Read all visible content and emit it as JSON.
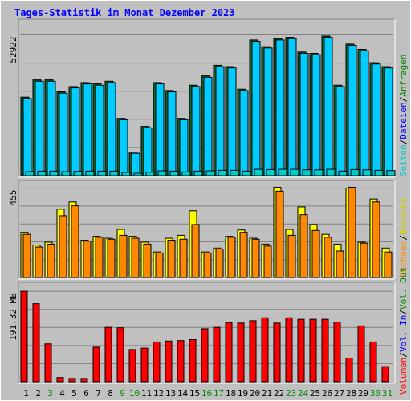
{
  "title": "Tages-Statistik im Monat Dezember 2023",
  "colors": {
    "background": "#c0c0c0",
    "title": "#0000ff",
    "requests": "#006633",
    "files": "#00ccff",
    "pages": "#00cccc",
    "visits": "#ffff00",
    "hosts": "#ff8800",
    "volume": "#ff0000",
    "vol_in": "#0000ff",
    "vol_out": "#008800",
    "sunday_label": "#008800",
    "weekday_label": "#000000"
  },
  "right_legend": {
    "top": [
      {
        "text": "Anfragen",
        "color": "#008800"
      },
      {
        "text": "/",
        "color": "#000000"
      },
      {
        "text": "Dateien",
        "color": "#0000ff"
      },
      {
        "text": "/",
        "color": "#000000"
      },
      {
        "text": "Seiten",
        "color": "#00cccc"
      }
    ],
    "middle": [
      {
        "text": "Besuche",
        "color": "#cccc00"
      },
      {
        "text": "/",
        "color": "#000000"
      },
      {
        "text": "Rechner",
        "color": "#ff8800"
      }
    ],
    "bottom": [
      {
        "text": "Vol. Out",
        "color": "#008800"
      },
      {
        "text": "/",
        "color": "#000000"
      },
      {
        "text": "Vol. In",
        "color": "#0000ff"
      },
      {
        "text": "/",
        "color": "#000000"
      },
      {
        "text": "Volumen",
        "color": "#ff0000"
      }
    ]
  },
  "chart_data": [
    {
      "type": "bar",
      "panel": "requests",
      "ytick_label": "52922",
      "ymax": 52922,
      "ylim": [
        0,
        57000
      ],
      "categories": [
        "1",
        "2",
        "3",
        "4",
        "5",
        "6",
        "7",
        "8",
        "9",
        "10",
        "11",
        "12",
        "13",
        "14",
        "15",
        "16",
        "17",
        "18",
        "19",
        "20",
        "21",
        "22",
        "23",
        "24",
        "25",
        "26",
        "27",
        "28",
        "29",
        "30",
        "31"
      ],
      "series": [
        {
          "name": "Anfragen",
          "values": [
            29500,
            36000,
            36000,
            31500,
            33500,
            35000,
            34500,
            35500,
            21500,
            8500,
            18500,
            35000,
            32000,
            21500,
            34000,
            37500,
            41500,
            41000,
            32500,
            51000,
            48500,
            51500,
            52000,
            46500,
            46000,
            52500,
            34000,
            49500,
            47500,
            42500,
            41000
          ]
        },
        {
          "name": "Dateien",
          "values": [
            29000,
            35500,
            35500,
            31000,
            33000,
            34500,
            34000,
            35000,
            21000,
            8400,
            18000,
            34500,
            31500,
            21000,
            33500,
            37000,
            41000,
            40500,
            32000,
            50500,
            48000,
            51000,
            51500,
            46000,
            45500,
            52000,
            33500,
            49000,
            47000,
            42000,
            40500
          ]
        },
        {
          "name": "Seiten",
          "values": [
            1500,
            1700,
            1700,
            1500,
            1600,
            1700,
            1700,
            1700,
            1200,
            900,
            1300,
            1800,
            1700,
            1400,
            1700,
            1800,
            2000,
            2000,
            1700,
            2400,
            2300,
            2400,
            2400,
            2200,
            2200,
            2400,
            1700,
            2300,
            2200,
            2000,
            1900
          ]
        }
      ]
    },
    {
      "type": "bar",
      "panel": "visits",
      "ytick_label": "455",
      "ymax": 455,
      "ylim": [
        0,
        470
      ],
      "categories": [
        "1",
        "2",
        "3",
        "4",
        "5",
        "6",
        "7",
        "8",
        "9",
        "10",
        "11",
        "12",
        "13",
        "14",
        "15",
        "16",
        "17",
        "18",
        "19",
        "20",
        "21",
        "22",
        "23",
        "24",
        "25",
        "26",
        "27",
        "28",
        "29",
        "30",
        "31"
      ],
      "series": [
        {
          "name": "Besuche",
          "values": [
            230,
            165,
            180,
            348,
            385,
            190,
            210,
            200,
            245,
            210,
            180,
            130,
            200,
            215,
            340,
            130,
            150,
            210,
            242,
            200,
            170,
            460,
            245,
            360,
            270,
            220,
            170,
            455,
            180,
            400,
            150
          ]
        },
        {
          "name": "Rechner",
          "values": [
            220,
            155,
            170,
            315,
            365,
            185,
            205,
            195,
            215,
            200,
            170,
            125,
            190,
            195,
            270,
            125,
            145,
            205,
            230,
            195,
            160,
            440,
            215,
            320,
            240,
            205,
            135,
            460,
            175,
            385,
            130
          ]
        }
      ]
    },
    {
      "type": "bar",
      "panel": "volume",
      "ytick_label": "191.32 MB",
      "unit": "MB",
      "ymax": 191.32,
      "ylim": [
        0,
        200
      ],
      "categories": [
        "1",
        "2",
        "3",
        "4",
        "5",
        "6",
        "7",
        "8",
        "9",
        "10",
        "11",
        "12",
        "13",
        "14",
        "15",
        "16",
        "17",
        "18",
        "19",
        "20",
        "21",
        "22",
        "23",
        "24",
        "25",
        "26",
        "27",
        "28",
        "29",
        "30",
        "31"
      ],
      "series": [
        {
          "name": "Volumen",
          "values": [
            191.32,
            165,
            80,
            9,
            7,
            7,
            73,
            115,
            114,
            68,
            71,
            84,
            86,
            87,
            89,
            112,
            115,
            125,
            124,
            129,
            135,
            124,
            135,
            132,
            132,
            132,
            126,
            50,
            118,
            84,
            32
          ]
        }
      ]
    }
  ],
  "x_labels": [
    {
      "text": "1",
      "sunday": false
    },
    {
      "text": "2",
      "sunday": false
    },
    {
      "text": "3",
      "sunday": true
    },
    {
      "text": "4",
      "sunday": false
    },
    {
      "text": "5",
      "sunday": false
    },
    {
      "text": "6",
      "sunday": false
    },
    {
      "text": "7",
      "sunday": false
    },
    {
      "text": "8",
      "sunday": false
    },
    {
      "text": "9",
      "sunday": true
    },
    {
      "text": "10",
      "sunday": true
    },
    {
      "text": "11",
      "sunday": false
    },
    {
      "text": "12",
      "sunday": false
    },
    {
      "text": "13",
      "sunday": false
    },
    {
      "text": "14",
      "sunday": false
    },
    {
      "text": "15",
      "sunday": false
    },
    {
      "text": "16",
      "sunday": true
    },
    {
      "text": "17",
      "sunday": true
    },
    {
      "text": "18",
      "sunday": false
    },
    {
      "text": "19",
      "sunday": false
    },
    {
      "text": "20",
      "sunday": false
    },
    {
      "text": "21",
      "sunday": false
    },
    {
      "text": "22",
      "sunday": false
    },
    {
      "text": "23",
      "sunday": true
    },
    {
      "text": "24",
      "sunday": true
    },
    {
      "text": "25",
      "sunday": false
    },
    {
      "text": "26",
      "sunday": false
    },
    {
      "text": "27",
      "sunday": false
    },
    {
      "text": "28",
      "sunday": false
    },
    {
      "text": "29",
      "sunday": false
    },
    {
      "text": "30",
      "sunday": true
    },
    {
      "text": "31",
      "sunday": true
    }
  ]
}
